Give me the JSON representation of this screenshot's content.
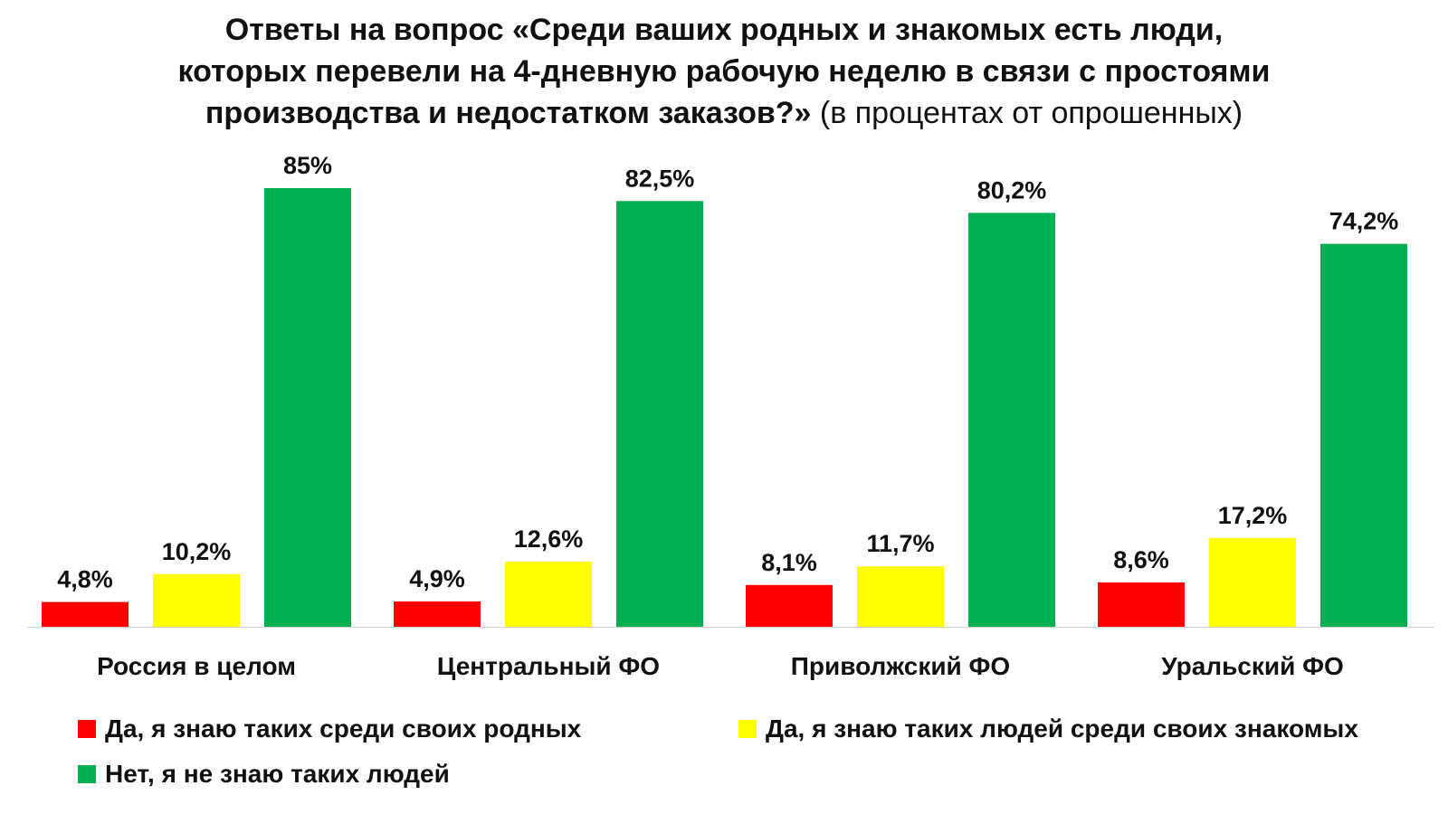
{
  "title": {
    "line1": "Ответы на вопрос «Среди ваших родных и знакомых есть люди,",
    "line2": "которых перевели на 4-дневную рабочую неделю в связи с простоями",
    "line3_bold": "производства и недостатком заказов?»",
    "line3_normal": "(в процентах от опрошенных)"
  },
  "colors": {
    "red": "#ff0000",
    "yellow": "#ffff00",
    "green": "#00b050"
  },
  "chart_data": {
    "type": "bar",
    "categories": [
      "Россия в целом",
      "Центральный ФО",
      "Приволжский ФО",
      "Уральский ФО"
    ],
    "series": [
      {
        "name": "Да, я знаю таких среди своих родных",
        "values": [
          4.8,
          4.9,
          8.1,
          8.6
        ],
        "labels": [
          "4,8%",
          "4,9%",
          "8,1%",
          "8,6%"
        ],
        "color": "#ff0000"
      },
      {
        "name": "Да, я знаю таких людей среди своих знакомых",
        "values": [
          10.2,
          12.6,
          11.7,
          17.2
        ],
        "labels": [
          "10,2%",
          "12,6%",
          "11,7%",
          "17,2%"
        ],
        "color": "#ffff00"
      },
      {
        "name": "Нет, я не знаю таких людей",
        "values": [
          85,
          82.5,
          80.2,
          74.2
        ],
        "labels": [
          "85%",
          "82,5%",
          "80,2%",
          "74,2%"
        ],
        "color": "#00b050"
      }
    ],
    "ylim": [
      0,
      85
    ],
    "grid": false,
    "legend_position": "bottom"
  }
}
